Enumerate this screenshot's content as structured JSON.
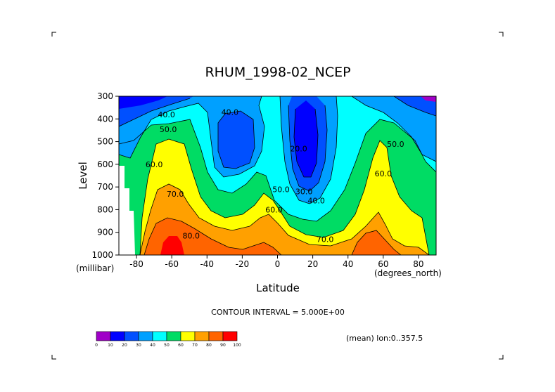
{
  "chart_data": {
    "type": "contour",
    "title": "RHUM_1998-02_NCEP",
    "xlabel": "Latitude",
    "ylabel": "Level",
    "x_unit": "(degrees_north)",
    "y_unit": "(millibar)",
    "xlim": [
      -90,
      90
    ],
    "ylim": [
      1000,
      300
    ],
    "x_ticks": [
      "-80",
      "-60",
      "-40",
      "-20",
      "0",
      "20",
      "40",
      "60",
      "80"
    ],
    "x_tick_values": [
      -80,
      -60,
      -40,
      -20,
      0,
      20,
      40,
      60,
      80
    ],
    "y_ticks": [
      "300",
      "400",
      "500",
      "600",
      "700",
      "800",
      "900",
      "1000"
    ],
    "y_tick_values": [
      300,
      400,
      500,
      600,
      700,
      800,
      900,
      1000
    ],
    "contour_interval_text": "CONTOUR INTERVAL = 5.000E+00",
    "mean_text": "(mean) lon:0..357.5",
    "colorbar": {
      "levels": [
        "0",
        "10",
        "20",
        "30",
        "40",
        "50",
        "60",
        "70",
        "80",
        "90",
        "100"
      ],
      "colors": [
        "#a000c8",
        "#0000ff",
        "#0050ff",
        "#00a0ff",
        "#00ffff",
        "#00dc64",
        "#ffff00",
        "#ffa000",
        "#ff6400",
        "#ff0000"
      ]
    },
    "contour_labels": [
      {
        "text": "40.0",
        "lat": -63,
        "lev": 380
      },
      {
        "text": "40.0",
        "lat": -27,
        "lev": 370
      },
      {
        "text": "50.0",
        "lat": -62,
        "lev": 445
      },
      {
        "text": "60.0",
        "lat": -70,
        "lev": 600
      },
      {
        "text": "70.0",
        "lat": -58,
        "lev": 730
      },
      {
        "text": "80.0",
        "lat": -49,
        "lev": 915
      },
      {
        "text": "20.0",
        "lat": 12,
        "lev": 530
      },
      {
        "text": "30.0",
        "lat": 15,
        "lev": 720
      },
      {
        "text": "40.0",
        "lat": 22,
        "lev": 760
      },
      {
        "text": "50.0",
        "lat": 2,
        "lev": 710
      },
      {
        "text": "60.0",
        "lat": -2,
        "lev": 800
      },
      {
        "text": "70.0",
        "lat": 27,
        "lev": 930
      },
      {
        "text": "50.0",
        "lat": 67,
        "lev": 510
      },
      {
        "text": "60.0",
        "lat": 60,
        "lev": 640
      }
    ]
  }
}
